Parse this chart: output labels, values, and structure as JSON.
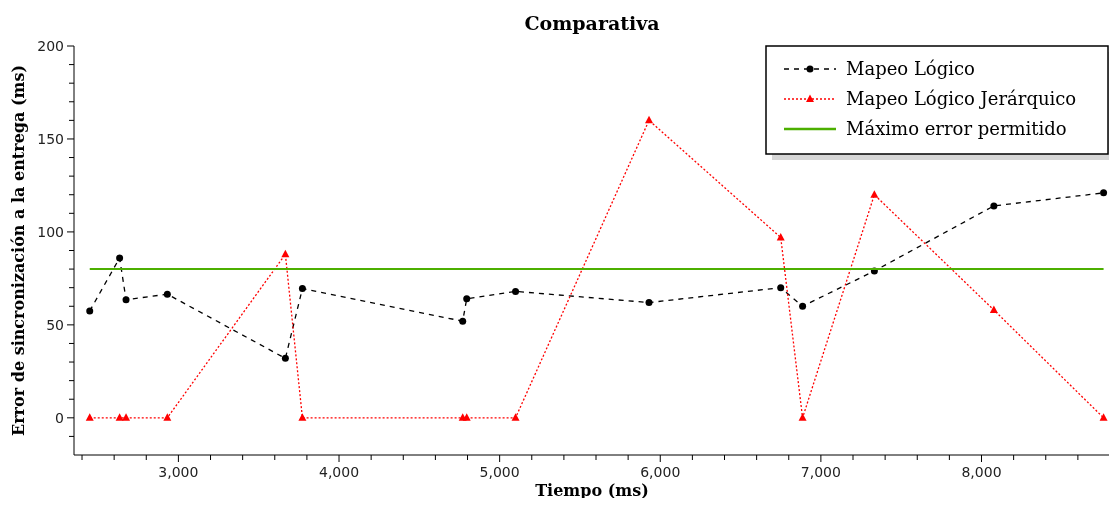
{
  "chart_data": {
    "type": "line",
    "title": "Comparativa",
    "xlabel": "Tiempo (ms)",
    "ylabel": "Error de sincronización a la entrega (ms)",
    "xlim": [
      2350,
      8800
    ],
    "ylim": [
      -20,
      200
    ],
    "xticks": [
      {
        "value": 2400,
        "label": null
      },
      {
        "value": 2600,
        "label": null
      },
      {
        "value": 2800,
        "label": null
      },
      {
        "value": 3000,
        "label": "3,000"
      },
      {
        "value": 3200,
        "label": null
      },
      {
        "value": 3400,
        "label": null
      },
      {
        "value": 3600,
        "label": null
      },
      {
        "value": 3800,
        "label": null
      },
      {
        "value": 4000,
        "label": "4,000"
      },
      {
        "value": 4200,
        "label": null
      },
      {
        "value": 4400,
        "label": null
      },
      {
        "value": 4600,
        "label": null
      },
      {
        "value": 4800,
        "label": null
      },
      {
        "value": 5000,
        "label": "5,000"
      },
      {
        "value": 5200,
        "label": null
      },
      {
        "value": 5400,
        "label": null
      },
      {
        "value": 5600,
        "label": null
      },
      {
        "value": 5800,
        "label": null
      },
      {
        "value": 6000,
        "label": "6,000"
      },
      {
        "value": 6200,
        "label": null
      },
      {
        "value": 6400,
        "label": null
      },
      {
        "value": 6600,
        "label": null
      },
      {
        "value": 6800,
        "label": null
      },
      {
        "value": 7000,
        "label": "7,000"
      },
      {
        "value": 7200,
        "label": null
      },
      {
        "value": 7400,
        "label": null
      },
      {
        "value": 7600,
        "label": null
      },
      {
        "value": 7800,
        "label": null
      },
      {
        "value": 8000,
        "label": "8,000"
      },
      {
        "value": 8200,
        "label": null
      },
      {
        "value": 8400,
        "label": null
      },
      {
        "value": 8600,
        "label": null
      },
      {
        "value": 8800,
        "label": null
      }
    ],
    "yticks": [
      {
        "value": -10,
        "label": null
      },
      0,
      {
        "value": 10,
        "label": null
      },
      {
        "value": 20,
        "label": null
      },
      {
        "value": 30,
        "label": null
      },
      {
        "value": 40,
        "label": null
      },
      50,
      {
        "value": 60,
        "label": null
      },
      {
        "value": 70,
        "label": null
      },
      {
        "value": 80,
        "label": null
      },
      {
        "value": 90,
        "label": null
      },
      100,
      {
        "value": 110,
        "label": null
      },
      {
        "value": 120,
        "label": null
      },
      {
        "value": 130,
        "label": null
      },
      {
        "value": 140,
        "label": null
      },
      150,
      {
        "value": 160,
        "label": null
      },
      {
        "value": 170,
        "label": null
      },
      {
        "value": 180,
        "label": null
      },
      {
        "value": 190,
        "label": null
      },
      200
    ],
    "grid": false,
    "legend": "top right",
    "x": [
      2448,
      2634,
      2674,
      2931,
      3666,
      3772,
      4770,
      4795,
      5099,
      5930,
      6750,
      6886,
      7333,
      8077,
      8760
    ],
    "series": [
      {
        "name": "Mapeo Lógico",
        "color": "#000000",
        "marker": "circle",
        "line_style": "dashed",
        "values": [
          57.5,
          86,
          63.5,
          66.5,
          32,
          69.5,
          52,
          64,
          68,
          62,
          70,
          60,
          79,
          114,
          121
        ]
      },
      {
        "name": "Mapeo Lógico Jerárquico",
        "color": "#ff0000",
        "marker": "triangle",
        "line_style": "dotted",
        "values": [
          0,
          0,
          0,
          0,
          88,
          0,
          0,
          0,
          0,
          160,
          97,
          0,
          120,
          58,
          0
        ]
      },
      {
        "name": "Máximo error permitido",
        "color": "#4caf00",
        "marker": "none",
        "line_style": "solid",
        "x": [
          2448,
          8760
        ],
        "values": [
          80,
          80
        ]
      }
    ]
  }
}
